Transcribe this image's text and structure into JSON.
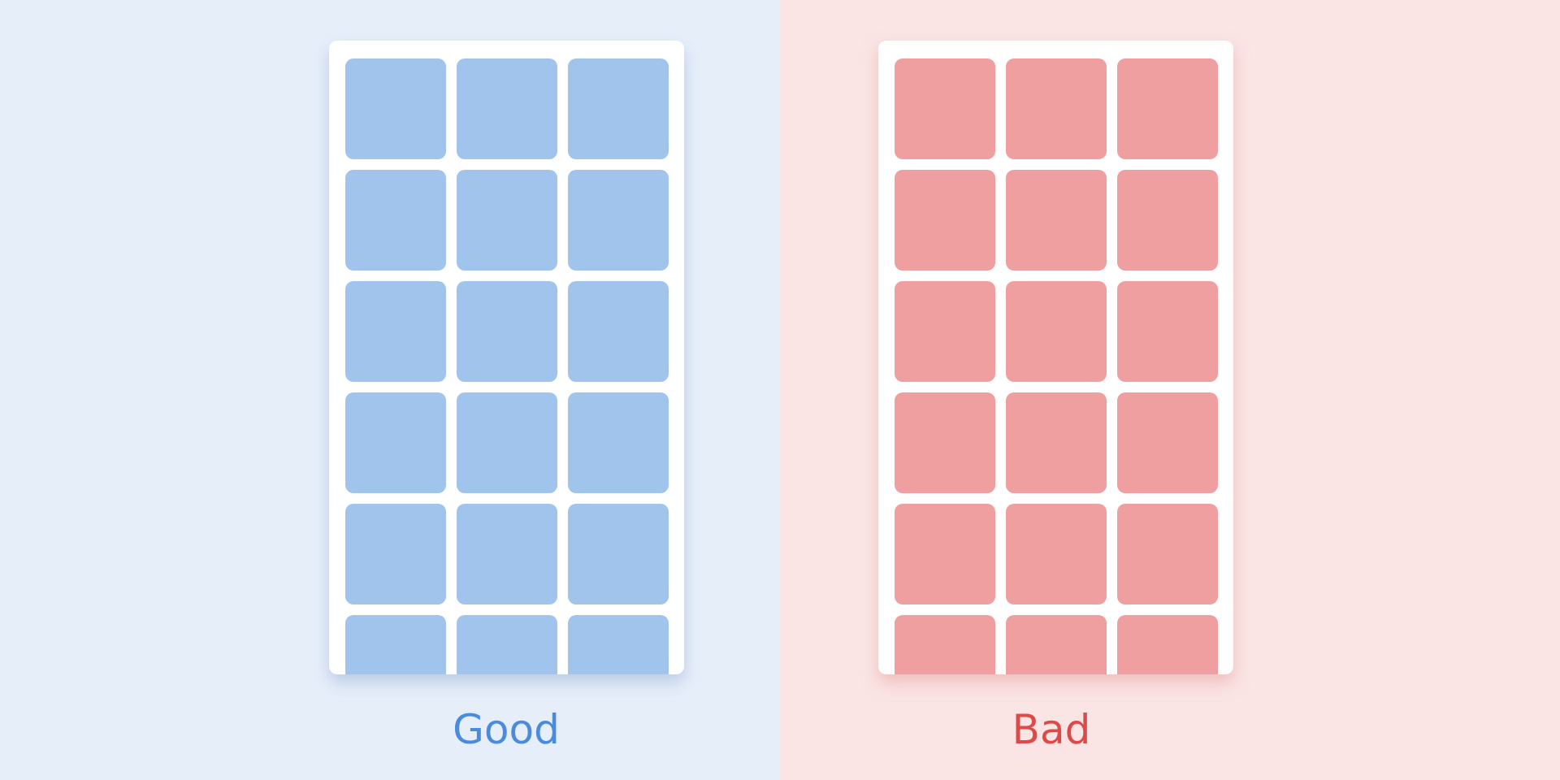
{
  "panels": [
    {
      "label": "Good"
    },
    {
      "label": "Bad"
    }
  ]
}
